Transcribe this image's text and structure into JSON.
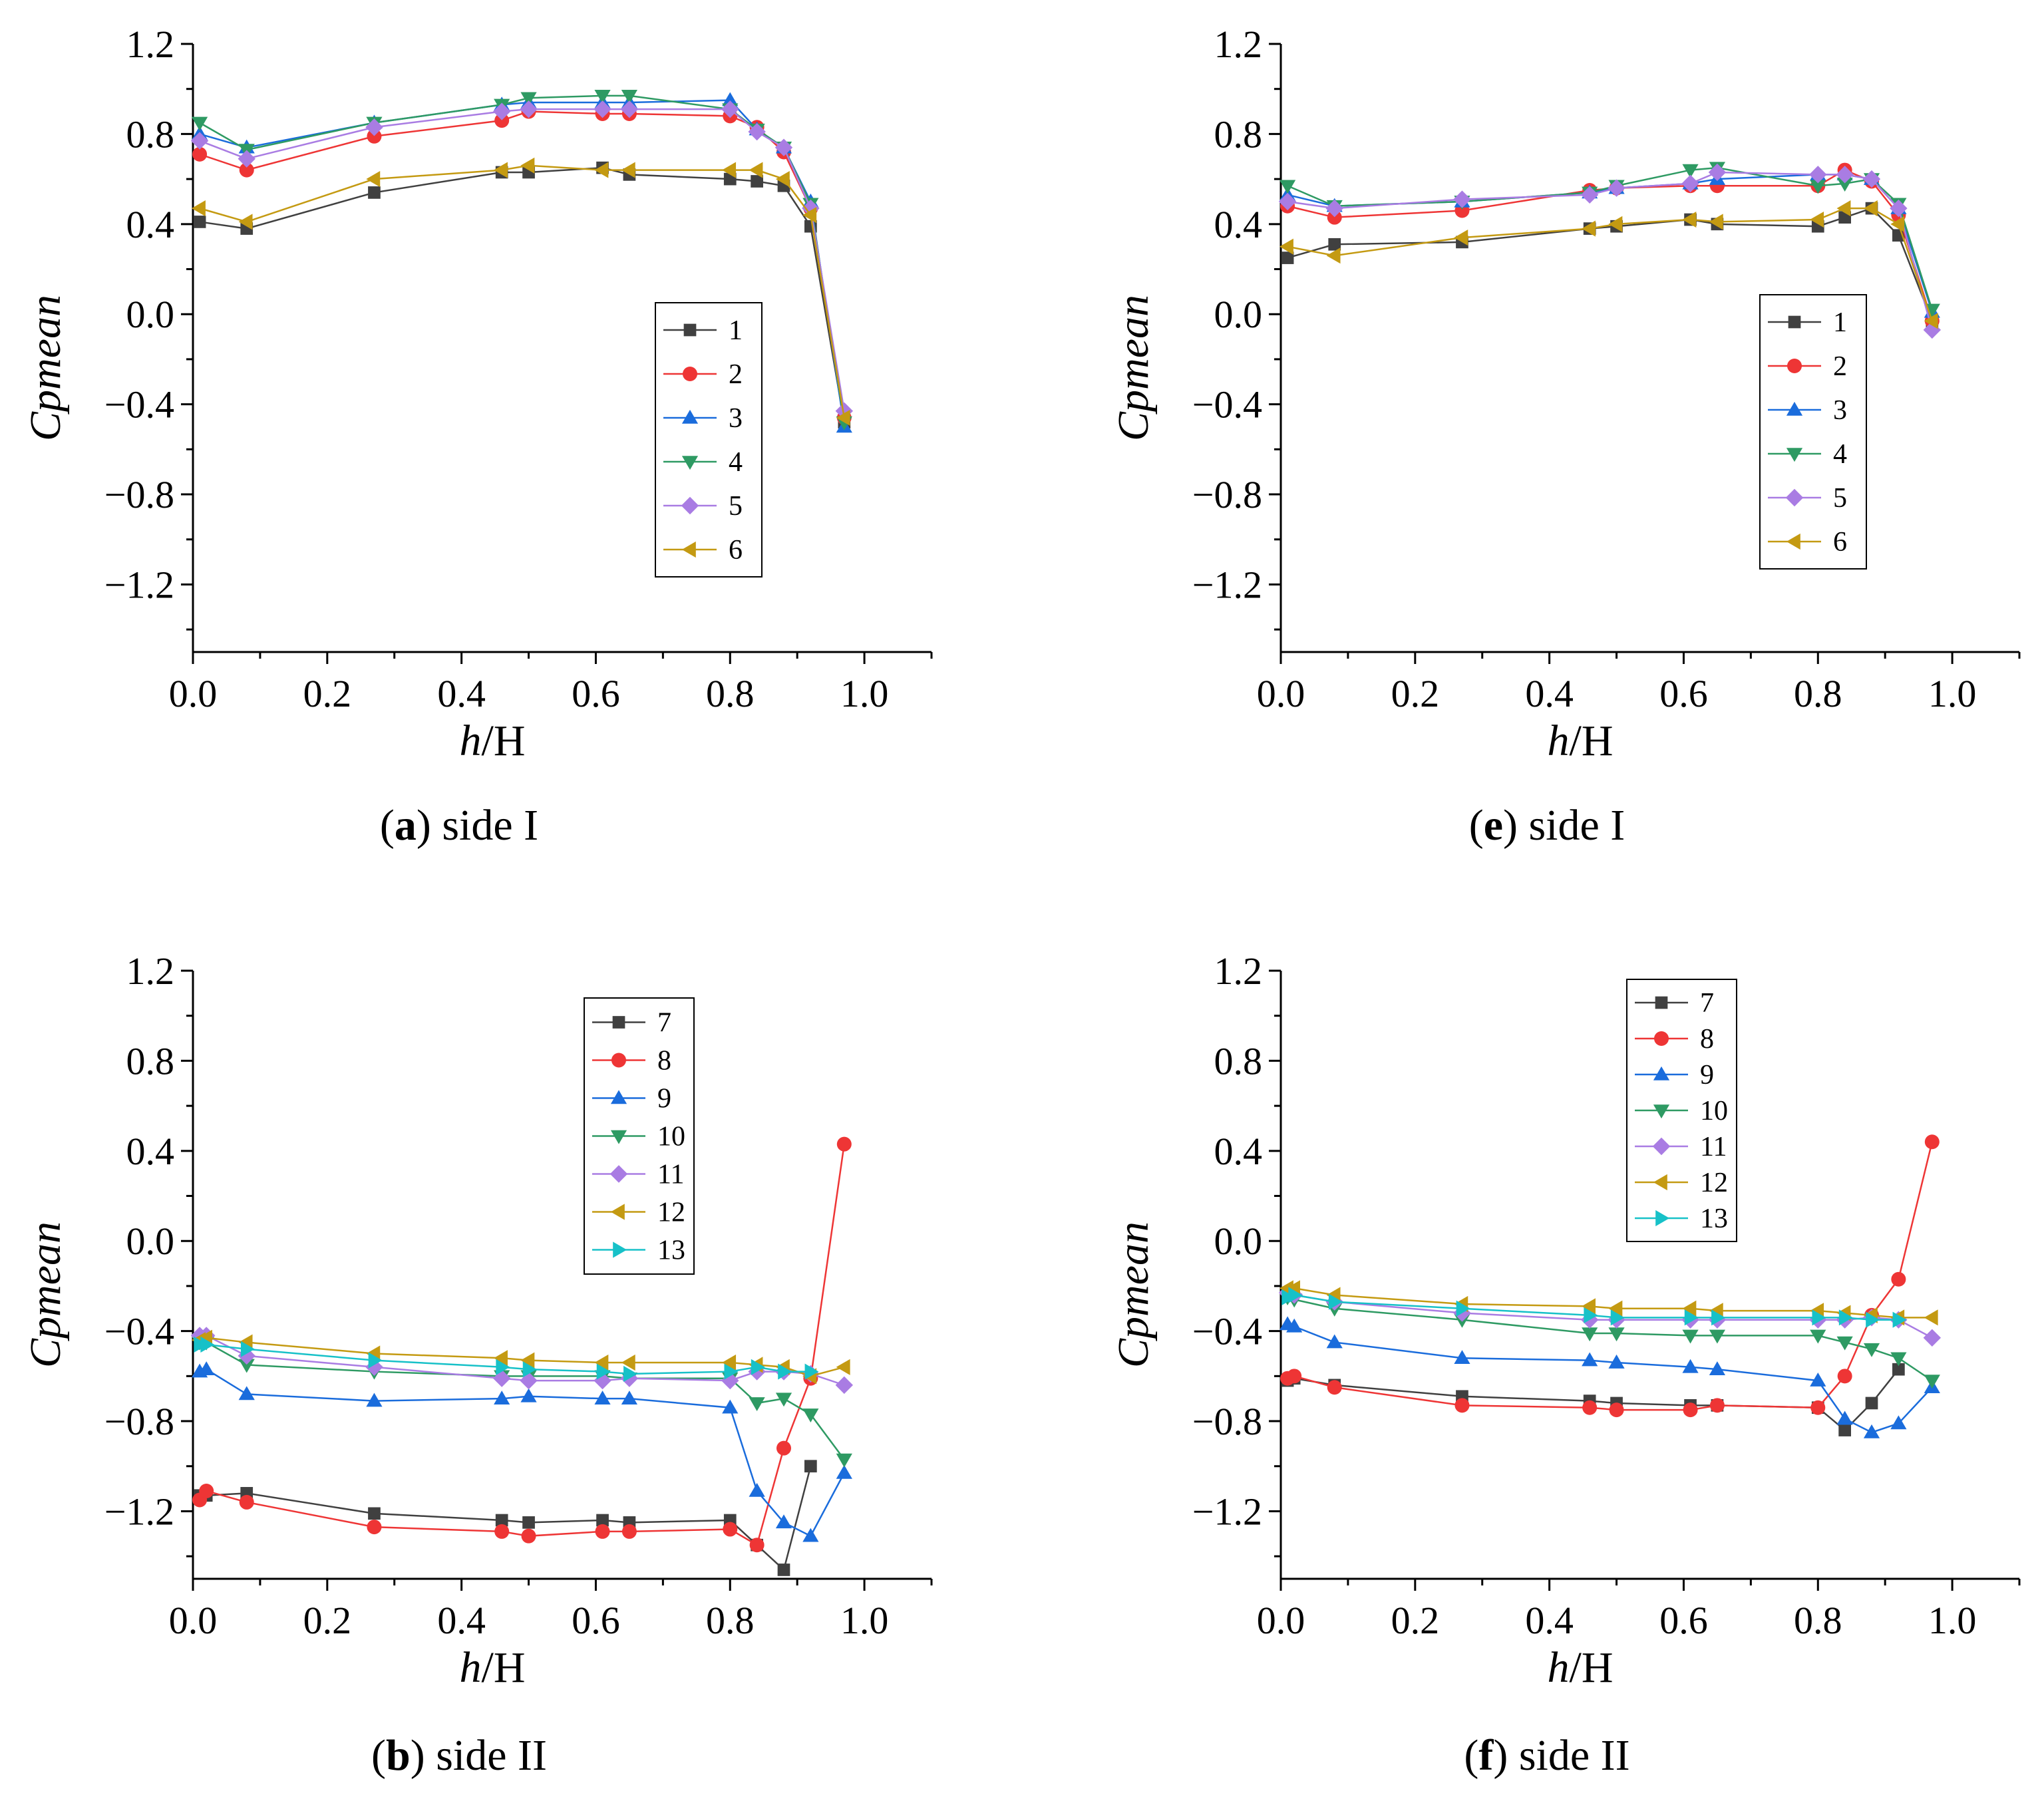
{
  "chart_data": [
    {
      "id": "a",
      "type": "line",
      "caption_letter": "a",
      "caption_text": " side I",
      "xlabel_italic": "h",
      "xlabel_rest": "/H",
      "ylabel": "Cpmean",
      "xlim": [
        0.0,
        1.1
      ],
      "ylim": [
        -1.5,
        1.2
      ],
      "xticks": [
        "0.0",
        "0.2",
        "0.4",
        "0.6",
        "0.8",
        "1.0"
      ],
      "yticks": [
        "1.2",
        "0.8",
        "0.4",
        "0.0",
        "−0.4",
        "−0.8",
        "−1.2"
      ],
      "legend_position": "center-right",
      "x": [
        0.01,
        0.08,
        0.27,
        0.46,
        0.5,
        0.61,
        0.65,
        0.8,
        0.84,
        0.88,
        0.92,
        0.97
      ],
      "series": [
        {
          "name": "1",
          "color": "#404040",
          "marker": "square",
          "values": [
            0.41,
            0.38,
            0.54,
            0.63,
            0.63,
            0.65,
            0.62,
            0.6,
            0.59,
            0.57,
            0.39,
            -0.48
          ]
        },
        {
          "name": "2",
          "color": "#ee3535",
          "marker": "circle",
          "values": [
            0.71,
            0.64,
            0.79,
            0.86,
            0.9,
            0.89,
            0.89,
            0.88,
            0.83,
            0.72,
            0.47,
            -0.46
          ]
        },
        {
          "name": "3",
          "color": "#1a6cdc",
          "marker": "triangle-up",
          "values": [
            0.8,
            0.74,
            0.85,
            0.93,
            0.94,
            0.94,
            0.94,
            0.95,
            0.82,
            0.74,
            0.5,
            -0.5
          ]
        },
        {
          "name": "4",
          "color": "#2e9a63",
          "marker": "triangle-down",
          "values": [
            0.85,
            0.73,
            0.85,
            0.93,
            0.96,
            0.97,
            0.97,
            0.91,
            0.82,
            0.74,
            0.49,
            -0.48
          ]
        },
        {
          "name": "5",
          "color": "#a97ce3",
          "marker": "diamond",
          "values": [
            0.77,
            0.69,
            0.83,
            0.9,
            0.91,
            0.91,
            0.91,
            0.91,
            0.81,
            0.74,
            0.47,
            -0.43
          ]
        },
        {
          "name": "6",
          "color": "#c49a12",
          "marker": "triangle-left",
          "values": [
            0.47,
            0.41,
            0.6,
            0.64,
            0.66,
            0.64,
            0.64,
            0.64,
            0.64,
            0.6,
            0.44,
            -0.46
          ]
        }
      ]
    },
    {
      "id": "e",
      "type": "line",
      "caption_letter": "e",
      "caption_text": " side I",
      "xlabel_italic": "h",
      "xlabel_rest": "/H",
      "ylabel": "Cpmean",
      "xlim": [
        0.0,
        1.1
      ],
      "ylim": [
        -1.5,
        1.2
      ],
      "xticks": [
        "0.0",
        "0.2",
        "0.4",
        "0.6",
        "0.8",
        "1.0"
      ],
      "yticks": [
        "1.2",
        "0.8",
        "0.4",
        "0.0",
        "−0.4",
        "−0.8",
        "−1.2"
      ],
      "legend_position": "center-right",
      "x": [
        0.01,
        0.08,
        0.27,
        0.46,
        0.5,
        0.61,
        0.65,
        0.8,
        0.84,
        0.88,
        0.92,
        0.97
      ],
      "series": [
        {
          "name": "1",
          "color": "#404040",
          "marker": "square",
          "values": [
            0.25,
            0.31,
            0.32,
            0.38,
            0.39,
            0.42,
            0.4,
            0.39,
            0.43,
            0.47,
            0.35,
            -0.03
          ]
        },
        {
          "name": "2",
          "color": "#ee3535",
          "marker": "circle",
          "values": [
            0.48,
            0.43,
            0.46,
            0.55,
            0.56,
            0.57,
            0.57,
            0.57,
            0.64,
            0.59,
            0.44,
            -0.03
          ]
        },
        {
          "name": "3",
          "color": "#1a6cdc",
          "marker": "triangle-up",
          "values": [
            0.53,
            0.48,
            0.5,
            0.54,
            0.56,
            0.58,
            0.6,
            0.62,
            0.62,
            0.6,
            0.47,
            0.01
          ]
        },
        {
          "name": "4",
          "color": "#2e9a63",
          "marker": "triangle-down",
          "values": [
            0.57,
            0.48,
            0.5,
            0.54,
            0.57,
            0.64,
            0.65,
            0.57,
            0.58,
            0.6,
            0.49,
            0.02
          ]
        },
        {
          "name": "5",
          "color": "#a97ce3",
          "marker": "diamond",
          "values": [
            0.5,
            0.47,
            0.51,
            0.53,
            0.56,
            0.58,
            0.63,
            0.62,
            0.62,
            0.6,
            0.47,
            -0.07
          ]
        },
        {
          "name": "6",
          "color": "#c49a12",
          "marker": "triangle-left",
          "values": [
            0.3,
            0.26,
            0.34,
            0.38,
            0.4,
            0.42,
            0.41,
            0.42,
            0.47,
            0.47,
            0.4,
            -0.03
          ]
        }
      ]
    },
    {
      "id": "b",
      "type": "line",
      "caption_letter": "b",
      "caption_text": " side II",
      "xlabel_italic": "h",
      "xlabel_rest": "/H",
      "ylabel": "Cpmean",
      "xlim": [
        0.0,
        1.1
      ],
      "ylim": [
        -1.5,
        1.2
      ],
      "xticks": [
        "0.0",
        "0.2",
        "0.4",
        "0.6",
        "0.8",
        "1.0"
      ],
      "yticks": [
        "1.2",
        "0.8",
        "0.4",
        "0.0",
        "−0.4",
        "−0.8",
        "−1.2"
      ],
      "legend_position": "top-right",
      "x": [
        0.01,
        0.02,
        0.08,
        0.27,
        0.46,
        0.5,
        0.61,
        0.65,
        0.8,
        0.84,
        0.88,
        0.92,
        0.97
      ],
      "series": [
        {
          "name": "7",
          "color": "#404040",
          "marker": "square",
          "values": [
            -1.13,
            -1.13,
            -1.12,
            -1.21,
            -1.24,
            -1.25,
            -1.24,
            -1.25,
            -1.24,
            -1.35,
            -1.46,
            -1.0,
            null
          ]
        },
        {
          "name": "8",
          "color": "#ee3535",
          "marker": "circle",
          "values": [
            -1.15,
            -1.11,
            -1.16,
            -1.27,
            -1.29,
            -1.31,
            -1.29,
            -1.29,
            -1.28,
            -1.35,
            -0.92,
            -0.61,
            0.43
          ]
        },
        {
          "name": "9",
          "color": "#1a6cdc",
          "marker": "triangle-up",
          "values": [
            -0.58,
            -0.57,
            -0.68,
            -0.71,
            -0.7,
            -0.69,
            -0.7,
            -0.7,
            -0.74,
            -1.11,
            -1.25,
            -1.31,
            -1.03
          ]
        },
        {
          "name": "10",
          "color": "#2e9a63",
          "marker": "triangle-down",
          "values": [
            -0.45,
            -0.45,
            -0.55,
            -0.58,
            -0.6,
            -0.6,
            -0.6,
            -0.61,
            -0.61,
            -0.72,
            -0.7,
            -0.77,
            -0.97
          ]
        },
        {
          "name": "11",
          "color": "#a97ce3",
          "marker": "diamond",
          "values": [
            -0.42,
            -0.42,
            -0.51,
            -0.56,
            -0.61,
            -0.62,
            -0.62,
            -0.61,
            -0.62,
            -0.58,
            -0.58,
            -0.59,
            -0.64
          ]
        },
        {
          "name": "12",
          "color": "#c49a12",
          "marker": "triangle-left",
          "values": [
            -0.44,
            -0.43,
            -0.45,
            -0.5,
            -0.52,
            -0.53,
            -0.54,
            -0.54,
            -0.54,
            -0.55,
            -0.56,
            -0.6,
            -0.56
          ]
        },
        {
          "name": "13",
          "color": "#17c1c8",
          "marker": "triangle-right",
          "values": [
            -0.46,
            -0.46,
            -0.48,
            -0.53,
            -0.56,
            -0.57,
            -0.58,
            -0.59,
            -0.58,
            -0.56,
            -0.58,
            -0.58,
            null
          ]
        }
      ]
    },
    {
      "id": "f",
      "type": "line",
      "caption_letter": "f",
      "caption_text": " side II",
      "xlabel_italic": "h",
      "xlabel_rest": "/H",
      "ylabel": "Cpmean",
      "xlim": [
        0.0,
        1.1
      ],
      "ylim": [
        -1.5,
        1.2
      ],
      "xticks": [
        "0.0",
        "0.2",
        "0.4",
        "0.6",
        "0.8",
        "1.0"
      ],
      "yticks": [
        "1.2",
        "0.8",
        "0.4",
        "0.0",
        "−0.4",
        "−0.8",
        "−1.2"
      ],
      "legend_position": "top-left",
      "x": [
        0.01,
        0.02,
        0.08,
        0.27,
        0.46,
        0.5,
        0.61,
        0.65,
        0.8,
        0.84,
        0.88,
        0.92,
        0.97
      ],
      "series": [
        {
          "name": "7",
          "color": "#404040",
          "marker": "square",
          "values": [
            -0.62,
            -0.61,
            -0.64,
            -0.69,
            -0.71,
            -0.72,
            -0.73,
            -0.73,
            -0.74,
            -0.84,
            -0.72,
            -0.57,
            null
          ]
        },
        {
          "name": "8",
          "color": "#ee3535",
          "marker": "circle",
          "values": [
            -0.61,
            -0.6,
            -0.65,
            -0.73,
            -0.74,
            -0.75,
            -0.75,
            -0.73,
            -0.74,
            -0.6,
            -0.33,
            -0.17,
            0.44
          ]
        },
        {
          "name": "9",
          "color": "#1a6cdc",
          "marker": "triangle-up",
          "values": [
            -0.37,
            -0.38,
            -0.45,
            -0.52,
            -0.53,
            -0.54,
            -0.56,
            -0.57,
            -0.62,
            -0.79,
            -0.85,
            -0.81,
            -0.65
          ]
        },
        {
          "name": "10",
          "color": "#2e9a63",
          "marker": "triangle-down",
          "values": [
            -0.25,
            -0.26,
            -0.3,
            -0.35,
            -0.41,
            -0.41,
            -0.42,
            -0.42,
            -0.42,
            -0.45,
            -0.48,
            -0.52,
            -0.62
          ]
        },
        {
          "name": "11",
          "color": "#a97ce3",
          "marker": "diamond",
          "values": [
            -0.23,
            -0.24,
            -0.27,
            -0.32,
            -0.35,
            -0.35,
            -0.35,
            -0.35,
            -0.35,
            -0.35,
            -0.34,
            -0.35,
            -0.43
          ]
        },
        {
          "name": "12",
          "color": "#c49a12",
          "marker": "triangle-left",
          "values": [
            -0.21,
            -0.21,
            -0.24,
            -0.28,
            -0.29,
            -0.3,
            -0.3,
            -0.31,
            -0.31,
            -0.32,
            -0.33,
            -0.34,
            -0.34
          ]
        },
        {
          "name": "13",
          "color": "#17c1c8",
          "marker": "triangle-right",
          "values": [
            -0.25,
            -0.24,
            -0.27,
            -0.3,
            -0.33,
            -0.34,
            -0.34,
            -0.34,
            -0.34,
            -0.34,
            -0.35,
            -0.35,
            null
          ]
        }
      ]
    }
  ]
}
